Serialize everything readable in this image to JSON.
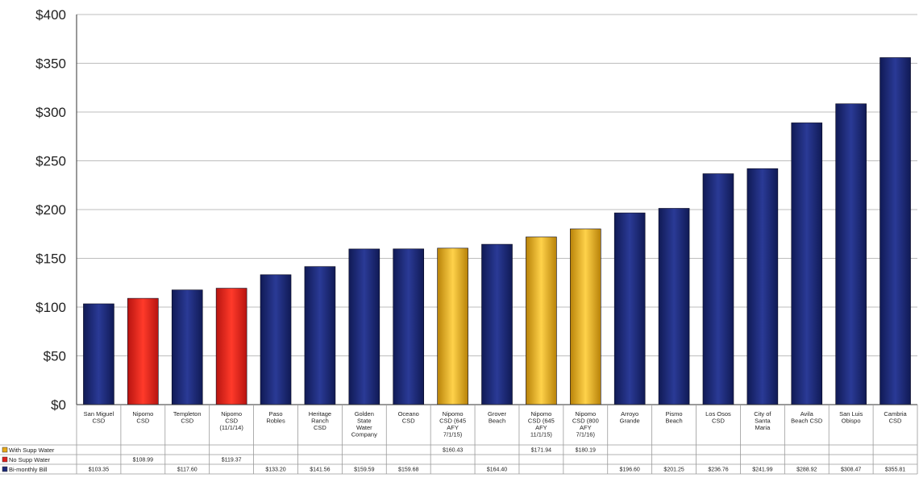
{
  "chart_data": {
    "type": "bar",
    "title": "",
    "xlabel": "",
    "ylabel": "",
    "ylim": [
      0,
      400
    ],
    "yticks": [
      "$0",
      "$50",
      "$100",
      "$150",
      "$200",
      "$250",
      "$300",
      "$350",
      "$400"
    ],
    "grid": true,
    "legend": "table-left",
    "categories": [
      [
        "San Miguel",
        "CSD"
      ],
      [
        "Nipomo",
        "CSD"
      ],
      [
        "Templeton",
        "CSD"
      ],
      [
        "Nipomo",
        "CSD",
        "(11/1/14)"
      ],
      [
        "Paso",
        "Robles"
      ],
      [
        "Heritage",
        "Ranch",
        "CSD"
      ],
      [
        "Golden",
        "State",
        "Water",
        "Company"
      ],
      [
        "Oceano",
        "CSD"
      ],
      [
        "Nipomo",
        "CSD (645",
        "AFY",
        "7/1/15)"
      ],
      [
        "Grover",
        "Beach"
      ],
      [
        "Nipomo",
        "CSD (645",
        "AFY",
        "11/1/15)"
      ],
      [
        "Nipomo",
        "CSD (800",
        "AFY",
        "7/1/16)"
      ],
      [
        "Arroyo",
        "Grande"
      ],
      [
        "Pismo",
        "Beach"
      ],
      [
        "Los Osos",
        "CSD"
      ],
      [
        "City of",
        "Santa",
        "Maria"
      ],
      [
        "Avila",
        "Beach CSD"
      ],
      [
        "San Luis",
        "Obispo"
      ],
      [
        "Cambria",
        "CSD"
      ]
    ],
    "series": [
      {
        "name": "With Supp Water",
        "color": "#e8a818",
        "values": [
          null,
          null,
          null,
          null,
          null,
          null,
          null,
          null,
          160.43,
          null,
          171.94,
          180.19,
          null,
          null,
          null,
          null,
          null,
          null,
          null
        ],
        "labels": [
          "",
          "",
          "",
          "",
          "",
          "",
          "",
          "",
          "$160.43",
          "",
          "$171.94",
          "$180.19",
          "",
          "",
          "",
          "",
          "",
          "",
          ""
        ]
      },
      {
        "name": "No Supp Water",
        "color": "#e0201c",
        "values": [
          null,
          108.99,
          null,
          119.37,
          null,
          null,
          null,
          null,
          null,
          null,
          null,
          null,
          null,
          null,
          null,
          null,
          null,
          null,
          null
        ],
        "labels": [
          "",
          "$108.99",
          "",
          "$119.37",
          "",
          "",
          "",
          "",
          "",
          "",
          "",
          "",
          "",
          "",
          "",
          "",
          "",
          "",
          ""
        ]
      },
      {
        "name": "Bi-monthly Bill",
        "color": "#1c2a78",
        "values": [
          103.35,
          null,
          117.6,
          null,
          133.2,
          141.56,
          159.59,
          159.68,
          null,
          164.4,
          null,
          null,
          196.6,
          201.25,
          236.76,
          241.99,
          288.92,
          308.47,
          355.81
        ],
        "labels": [
          "$103.35",
          "",
          "$117.60",
          "",
          "$133.20",
          "$141.56",
          "$159.59",
          "$159.68",
          "",
          "$164.40",
          "",
          "",
          "$196.60",
          "$201.25",
          "$236.76",
          "$241.99",
          "$288.92",
          "$308.47",
          "$355.81"
        ]
      }
    ]
  }
}
